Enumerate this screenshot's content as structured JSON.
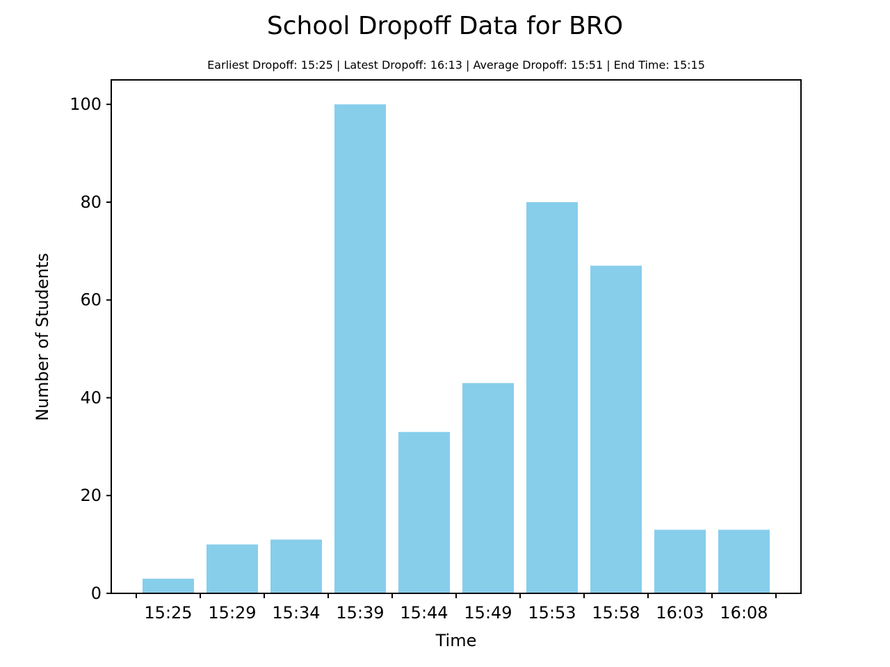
{
  "chart_data": {
    "type": "bar",
    "title": "School Dropoff Data for BRO",
    "subtitle": "Earliest Dropoff: 15:25 | Latest Dropoff: 16:13 | Average Dropoff: 15:51 | End Time: 15:15",
    "xlabel": "Time",
    "ylabel": "Number of Students",
    "categories": [
      "15:25",
      "15:29",
      "15:34",
      "15:39",
      "15:44",
      "15:49",
      "15:53",
      "15:58",
      "16:03",
      "16:08"
    ],
    "values": [
      3,
      10,
      11,
      100,
      33,
      43,
      80,
      67,
      13,
      13
    ],
    "ylim": [
      0,
      105
    ],
    "yticks": [
      0,
      20,
      40,
      60,
      80,
      100
    ],
    "grid": false,
    "colors": {
      "bar": "#87ceeb",
      "axis": "#000000"
    }
  }
}
